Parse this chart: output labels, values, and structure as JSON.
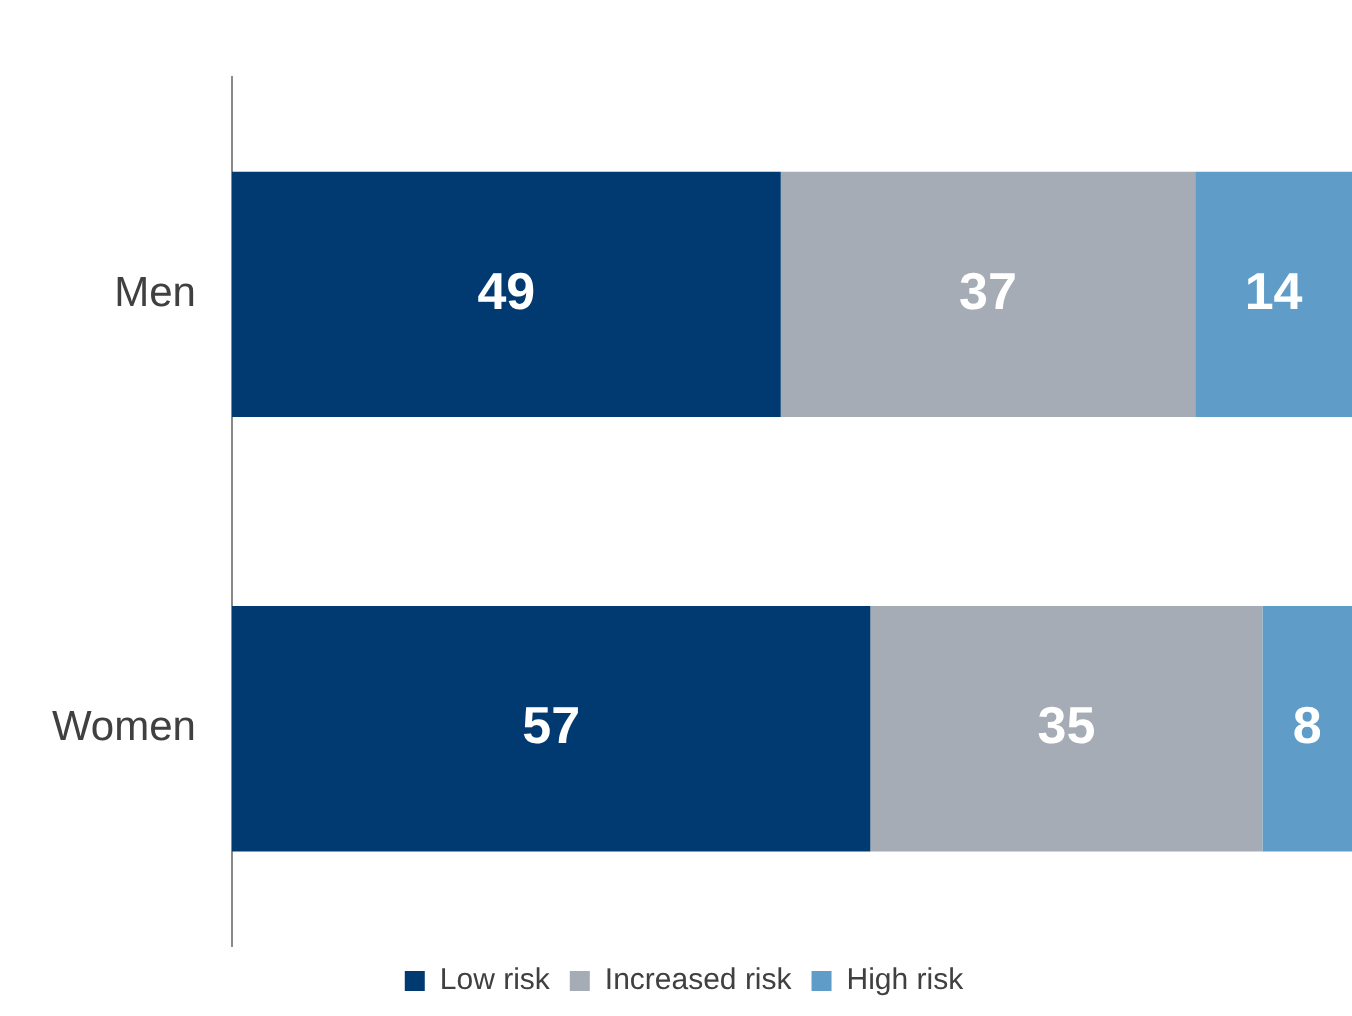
{
  "chart_data": {
    "type": "bar",
    "orientation": "horizontal",
    "stacked": true,
    "categories": [
      "Men",
      "Women"
    ],
    "series": [
      {
        "name": "Low risk",
        "color": "#003a70",
        "values": [
          49,
          57
        ]
      },
      {
        "name": "Increased risk",
        "color": "#a5acb5",
        "values": [
          37,
          35
        ]
      },
      {
        "name": "High risk",
        "color": "#5f9dc8",
        "values": [
          14,
          8
        ]
      }
    ],
    "xlim": [
      0,
      100
    ],
    "tick_labels": "y",
    "data_labels": true,
    "grid": false,
    "legend": "bottom"
  }
}
